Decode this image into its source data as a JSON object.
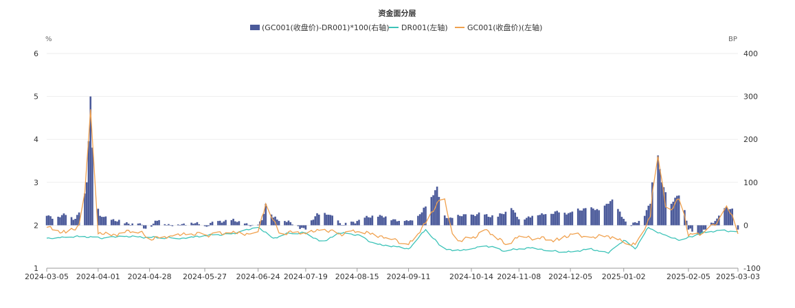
{
  "chart_data": {
    "type": "bar+line",
    "title": "资金面分层",
    "left_unit": "%",
    "right_unit": "BP",
    "left_ylim": [
      1,
      6
    ],
    "left_ticks": [
      "1",
      "2",
      "3",
      "4",
      "5",
      "6"
    ],
    "right_ylim": [
      -100,
      400
    ],
    "right_ticks": [
      "-100",
      "0",
      "100",
      "200",
      "300",
      "400"
    ],
    "x_range": [
      "2024-03-05",
      "2025-03-03"
    ],
    "x_ticks": [
      "2024-03-05",
      "2024-04-01",
      "2024-04-28",
      "2024-05-27",
      "2024-06-24",
      "2024-07-19",
      "2024-08-15",
      "2024-09-11",
      "2024-10-14",
      "2024-11-08",
      "2024-12-05",
      "2025-01-02",
      "2025-02-05",
      "2025-03-03"
    ],
    "legend_position": "top-center",
    "grid": "horizontal",
    "colors": {
      "spread": "#4b5a9a",
      "dr001": "#3cc3b8",
      "gc001": "#f0a14e"
    },
    "series": [
      {
        "name": "(GC001(收盘价)-DR001)*100(右轴)",
        "type": "bar",
        "axis": "right",
        "knots": [
          [
            "2024-03-05",
            22
          ],
          [
            "2024-03-10",
            18
          ],
          [
            "2024-03-15",
            24
          ],
          [
            "2024-03-20",
            15
          ],
          [
            "2024-03-24",
            40
          ],
          [
            "2024-03-26",
            100
          ],
          [
            "2024-03-28",
            300
          ],
          [
            "2024-03-30",
            60
          ],
          [
            "2024-04-02",
            22
          ],
          [
            "2024-04-07",
            15
          ],
          [
            "2024-04-14",
            6
          ],
          [
            "2024-04-22",
            4
          ],
          [
            "2024-04-26",
            -8
          ],
          [
            "2024-05-03",
            12
          ],
          [
            "2024-05-10",
            -2
          ],
          [
            "2024-05-20",
            6
          ],
          [
            "2024-05-27",
            -2
          ],
          [
            "2024-06-03",
            10
          ],
          [
            "2024-06-10",
            12
          ],
          [
            "2024-06-17",
            4
          ],
          [
            "2024-06-22",
            -4
          ],
          [
            "2024-06-26",
            12
          ],
          [
            "2024-06-28",
            50
          ],
          [
            "2024-07-02",
            18
          ],
          [
            "2024-07-08",
            10
          ],
          [
            "2024-07-15",
            -2
          ],
          [
            "2024-07-19",
            -10
          ],
          [
            "2024-07-25",
            28
          ],
          [
            "2024-08-01",
            24
          ],
          [
            "2024-08-08",
            0
          ],
          [
            "2024-08-15",
            10
          ],
          [
            "2024-08-25",
            24
          ],
          [
            "2024-09-03",
            14
          ],
          [
            "2024-09-11",
            10
          ],
          [
            "2024-09-18",
            30
          ],
          [
            "2024-09-26",
            90
          ],
          [
            "2024-09-29",
            20
          ],
          [
            "2024-10-03",
            18
          ],
          [
            "2024-10-14",
            25
          ],
          [
            "2024-10-21",
            25
          ],
          [
            "2024-10-28",
            20
          ],
          [
            "2024-11-04",
            40
          ],
          [
            "2024-11-08",
            14
          ],
          [
            "2024-11-15",
            22
          ],
          [
            "2024-11-22",
            26
          ],
          [
            "2024-11-29",
            30
          ],
          [
            "2024-12-05",
            30
          ],
          [
            "2024-12-13",
            40
          ],
          [
            "2024-12-20",
            35
          ],
          [
            "2024-12-27",
            60
          ],
          [
            "2025-01-02",
            15
          ],
          [
            "2025-01-05",
            -5
          ],
          [
            "2025-01-12",
            18
          ],
          [
            "2025-01-16",
            50
          ],
          [
            "2025-01-19",
            200
          ],
          [
            "2025-01-22",
            100
          ],
          [
            "2025-01-27",
            50
          ],
          [
            "2025-02-01",
            80
          ],
          [
            "2025-02-05",
            -10
          ],
          [
            "2025-02-10",
            -22
          ],
          [
            "2025-02-14",
            -10
          ],
          [
            "2025-02-19",
            10
          ],
          [
            "2025-02-24",
            40
          ],
          [
            "2025-03-01",
            35
          ],
          [
            "2025-03-03",
            -10
          ]
        ]
      },
      {
        "name": "DR001(左轴)",
        "type": "line",
        "axis": "left",
        "knots": [
          [
            "2024-03-05",
            1.7
          ],
          [
            "2024-03-15",
            1.72
          ],
          [
            "2024-03-25",
            1.74
          ],
          [
            "2024-04-02",
            1.7
          ],
          [
            "2024-04-15",
            1.74
          ],
          [
            "2024-04-28",
            1.72
          ],
          [
            "2024-05-15",
            1.7
          ],
          [
            "2024-05-27",
            1.76
          ],
          [
            "2024-06-10",
            1.8
          ],
          [
            "2024-06-24",
            1.95
          ],
          [
            "2024-07-02",
            1.7
          ],
          [
            "2024-07-10",
            1.82
          ],
          [
            "2024-07-19",
            1.82
          ],
          [
            "2024-07-28",
            1.6
          ],
          [
            "2024-08-05",
            1.82
          ],
          [
            "2024-08-15",
            1.78
          ],
          [
            "2024-08-25",
            1.55
          ],
          [
            "2024-09-05",
            1.5
          ],
          [
            "2024-09-11",
            1.45
          ],
          [
            "2024-09-20",
            1.9
          ],
          [
            "2024-09-28",
            1.5
          ],
          [
            "2024-10-05",
            1.4
          ],
          [
            "2024-10-14",
            1.45
          ],
          [
            "2024-10-22",
            1.52
          ],
          [
            "2024-11-01",
            1.4
          ],
          [
            "2024-11-08",
            1.45
          ],
          [
            "2024-11-15",
            1.48
          ],
          [
            "2024-11-25",
            1.4
          ],
          [
            "2024-12-05",
            1.38
          ],
          [
            "2024-12-15",
            1.45
          ],
          [
            "2024-12-25",
            1.35
          ],
          [
            "2025-01-02",
            1.65
          ],
          [
            "2025-01-08",
            1.45
          ],
          [
            "2025-01-15",
            1.95
          ],
          [
            "2025-01-22",
            1.8
          ],
          [
            "2025-02-01",
            1.65
          ],
          [
            "2025-02-10",
            1.8
          ],
          [
            "2025-02-20",
            1.88
          ],
          [
            "2025-03-03",
            1.85
          ]
        ]
      },
      {
        "name": "GC001(收盘价)(左轴)",
        "type": "line",
        "axis": "left",
        "knots": [
          [
            "2024-03-05",
            1.95
          ],
          [
            "2024-03-15",
            1.82
          ],
          [
            "2024-03-24",
            2.05
          ],
          [
            "2024-03-28",
            4.7
          ],
          [
            "2024-04-01",
            1.8
          ],
          [
            "2024-04-10",
            1.78
          ],
          [
            "2024-04-20",
            1.9
          ],
          [
            "2024-04-28",
            1.7
          ],
          [
            "2024-05-10",
            1.75
          ],
          [
            "2024-05-20",
            1.8
          ],
          [
            "2024-05-27",
            1.78
          ],
          [
            "2024-06-10",
            1.82
          ],
          [
            "2024-06-20",
            1.8
          ],
          [
            "2024-06-24",
            1.85
          ],
          [
            "2024-06-28",
            2.5
          ],
          [
            "2024-07-05",
            1.82
          ],
          [
            "2024-07-15",
            1.85
          ],
          [
            "2024-07-19",
            1.8
          ],
          [
            "2024-07-28",
            1.9
          ],
          [
            "2024-08-05",
            1.8
          ],
          [
            "2024-08-15",
            1.85
          ],
          [
            "2024-08-25",
            1.78
          ],
          [
            "2024-09-05",
            1.65
          ],
          [
            "2024-09-11",
            1.55
          ],
          [
            "2024-09-20",
            2.05
          ],
          [
            "2024-09-29",
            2.75
          ],
          [
            "2024-10-05",
            1.6
          ],
          [
            "2024-10-14",
            1.7
          ],
          [
            "2024-10-22",
            1.9
          ],
          [
            "2024-11-01",
            1.55
          ],
          [
            "2024-11-08",
            1.75
          ],
          [
            "2024-11-18",
            1.7
          ],
          [
            "2024-11-29",
            1.65
          ],
          [
            "2024-12-05",
            1.8
          ],
          [
            "2024-12-15",
            1.7
          ],
          [
            "2024-12-25",
            1.75
          ],
          [
            "2025-01-02",
            1.6
          ],
          [
            "2025-01-08",
            1.55
          ],
          [
            "2025-01-16",
            2.2
          ],
          [
            "2025-01-19",
            3.9
          ],
          [
            "2025-01-25",
            2.2
          ],
          [
            "2025-02-01",
            2.7
          ],
          [
            "2025-02-05",
            1.75
          ],
          [
            "2025-02-12",
            1.8
          ],
          [
            "2025-02-20",
            2.05
          ],
          [
            "2025-02-25",
            2.45
          ],
          [
            "2025-03-01",
            2.1
          ],
          [
            "2025-03-03",
            1.8
          ]
        ]
      }
    ]
  }
}
